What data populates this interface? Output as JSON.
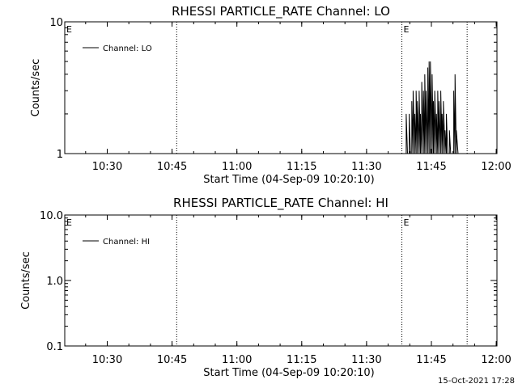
{
  "footer_timestamp": "15-Oct-2021 17:28",
  "chart_data": [
    {
      "type": "line",
      "title": "RHESSI PARTICLE_RATE Channel: LO",
      "xlabel": "Start Time (04-Sep-09 10:20:10)",
      "ylabel": "Counts/sec",
      "x_unit": "minutes since 10:20:10",
      "xlim": [
        0,
        100
      ],
      "ylim": [
        1,
        10
      ],
      "yscale": "log",
      "x_ticks": [
        {
          "label": "10:30",
          "value": 9.83
        },
        {
          "label": "10:45",
          "value": 24.83
        },
        {
          "label": "11:00",
          "value": 39.83
        },
        {
          "label": "11:15",
          "value": 54.83
        },
        {
          "label": "11:30",
          "value": 69.83
        },
        {
          "label": "11:45",
          "value": 84.83
        },
        {
          "label": "12:00",
          "value": 99.83
        }
      ],
      "y_ticks": [
        {
          "label": "1",
          "value": 1
        },
        {
          "label": "10",
          "value": 10
        }
      ],
      "vertical_lines": [
        {
          "x": 0,
          "label": "E"
        },
        {
          "x": 25.9,
          "label": ""
        },
        {
          "x": 78.0,
          "label": "E"
        },
        {
          "x": 93.1,
          "label": ""
        }
      ],
      "legend": {
        "position": "top-left",
        "entries": [
          "Channel: LO"
        ]
      },
      "series": [
        {
          "name": "Channel: LO",
          "points": [
            [
              78.6,
              1.0
            ],
            [
              79.0,
              2.0
            ],
            [
              79.3,
              1.0
            ],
            [
              79.7,
              2.0
            ],
            [
              80.0,
              1.0
            ],
            [
              80.3,
              2.5
            ],
            [
              80.6,
              3.0
            ],
            [
              81.0,
              2.0
            ],
            [
              81.3,
              3.0
            ],
            [
              81.6,
              2.5
            ],
            [
              82.0,
              3.0
            ],
            [
              82.3,
              2.0
            ],
            [
              82.6,
              3.5
            ],
            [
              83.0,
              3.0
            ],
            [
              83.3,
              4.0
            ],
            [
              83.6,
              3.0
            ],
            [
              84.0,
              4.5
            ],
            [
              84.3,
              5.0
            ],
            [
              84.6,
              5.0
            ],
            [
              85.0,
              4.0
            ],
            [
              85.3,
              2.5
            ],
            [
              85.6,
              3.0
            ],
            [
              86.0,
              2.0
            ],
            [
              86.3,
              3.0
            ],
            [
              86.6,
              2.5
            ],
            [
              87.0,
              3.0
            ],
            [
              87.3,
              2.0
            ],
            [
              87.6,
              2.5
            ],
            [
              88.0,
              1.5
            ],
            [
              88.3,
              2.0
            ],
            [
              88.6,
              1.0
            ],
            [
              89.0,
              1.5
            ],
            [
              89.3,
              1.0
            ],
            [
              89.6,
              1.0
            ],
            [
              90.0,
              3.0
            ],
            [
              90.3,
              4.0
            ],
            [
              90.6,
              1.5
            ],
            [
              91.0,
              1.0
            ]
          ]
        }
      ]
    },
    {
      "type": "line",
      "title": "RHESSI PARTICLE_RATE Channel: HI",
      "xlabel": "Start Time (04-Sep-09 10:20:10)",
      "ylabel": "Counts/sec",
      "x_unit": "minutes since 10:20:10",
      "xlim": [
        0,
        100
      ],
      "ylim": [
        0.1,
        10
      ],
      "yscale": "log",
      "x_ticks": [
        {
          "label": "10:30",
          "value": 9.83
        },
        {
          "label": "10:45",
          "value": 24.83
        },
        {
          "label": "11:00",
          "value": 39.83
        },
        {
          "label": "11:15",
          "value": 54.83
        },
        {
          "label": "11:30",
          "value": 69.83
        },
        {
          "label": "11:45",
          "value": 84.83
        },
        {
          "label": "12:00",
          "value": 99.83
        }
      ],
      "y_ticks": [
        {
          "label": "0.1",
          "value": 0.1
        },
        {
          "label": "1.0",
          "value": 1.0
        },
        {
          "label": "10.0",
          "value": 10.0
        }
      ],
      "vertical_lines": [
        {
          "x": 0,
          "label": "E"
        },
        {
          "x": 25.9,
          "label": ""
        },
        {
          "x": 78.0,
          "label": "E"
        },
        {
          "x": 93.1,
          "label": ""
        }
      ],
      "legend": {
        "position": "top-left",
        "entries": [
          "Channel: HI"
        ]
      },
      "series": [
        {
          "name": "Channel: HI",
          "points": []
        }
      ]
    }
  ]
}
